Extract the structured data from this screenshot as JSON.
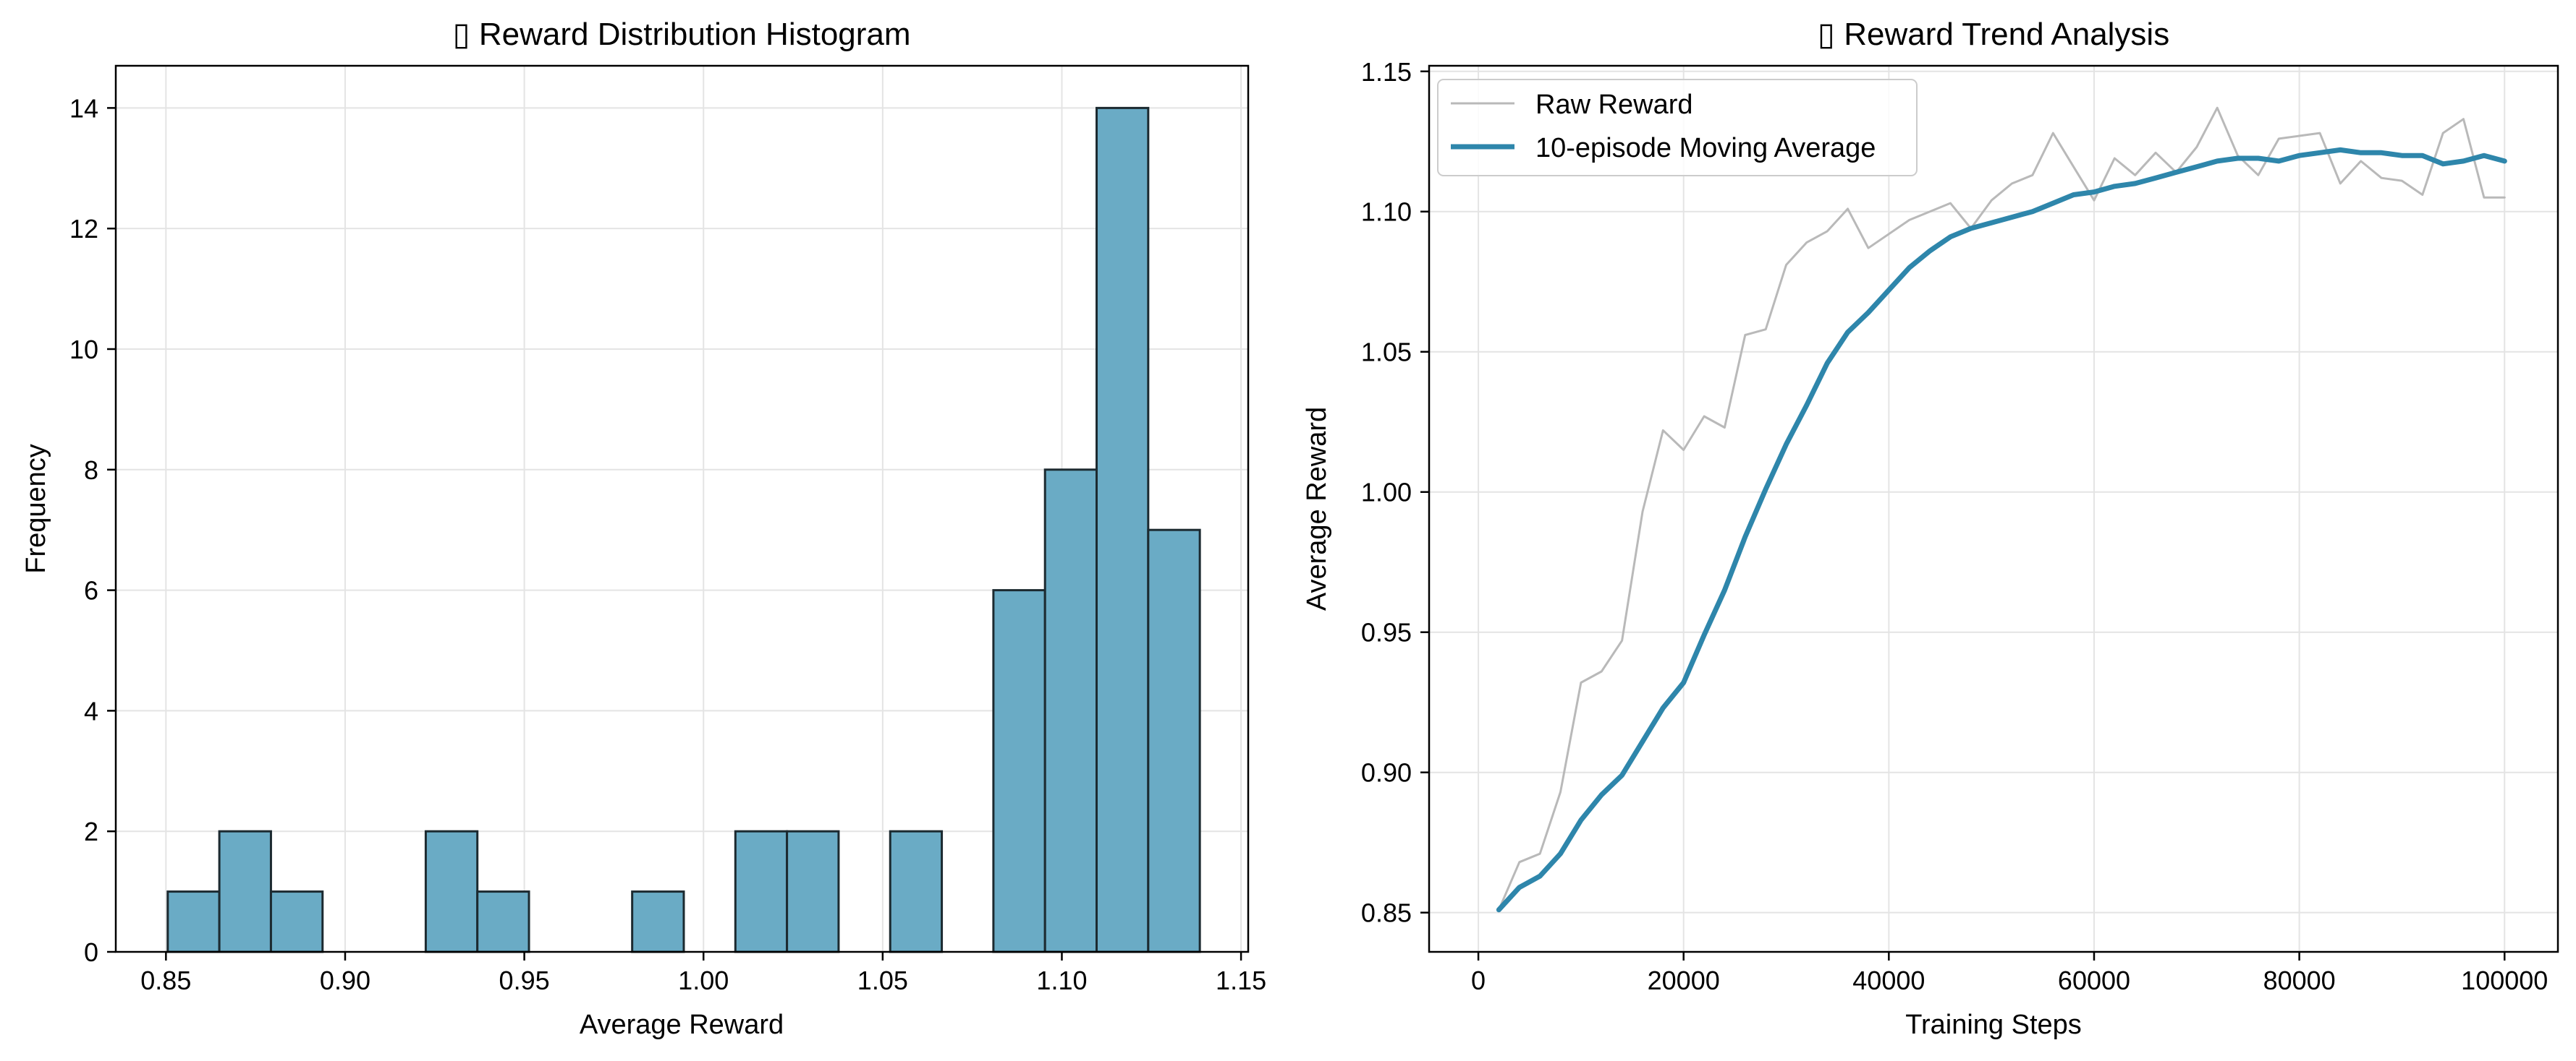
{
  "colors": {
    "bar_fill": "#6aabc5",
    "bar_edge": "#1c2a30",
    "moving_average": "#2e86ab",
    "raw": "#b9b9b9",
    "grid": "#e4e4e4"
  },
  "chart_data": [
    {
      "type": "bar",
      "title": "▯ Reward Distribution Histogram",
      "xlabel": "Average Reward",
      "ylabel": "Frequency",
      "xlim": [
        0.836,
        1.152
      ],
      "ylim": [
        0,
        14.7
      ],
      "xticks": [
        0.85,
        0.9,
        0.95,
        1.0,
        1.05,
        1.1,
        1.15
      ],
      "xtick_labels": [
        "0.85",
        "0.90",
        "0.95",
        "1.00",
        "1.05",
        "1.10",
        "1.15"
      ],
      "yticks": [
        0,
        2,
        4,
        6,
        8,
        10,
        12,
        14
      ],
      "ytick_labels": [
        "0",
        "2",
        "4",
        "6",
        "8",
        "10",
        "12",
        "14"
      ],
      "grid": true,
      "bin_edges": [
        0.8505,
        0.8649,
        0.8793,
        0.8937,
        0.9081,
        0.9225,
        0.9369,
        0.9513,
        0.9657,
        0.9801,
        0.9945,
        1.0089,
        1.0233,
        1.0377,
        1.0521,
        1.0665,
        1.0809,
        1.0953,
        1.1097,
        1.1241,
        1.1385
      ],
      "values": [
        1,
        2,
        1,
        0,
        0,
        2,
        1,
        0,
        0,
        1,
        0,
        2,
        2,
        0,
        2,
        0,
        6,
        8,
        14,
        7
      ]
    },
    {
      "type": "line",
      "title": "▯ Reward Trend Analysis",
      "xlabel": "Training Steps",
      "ylabel": "Average Reward",
      "xlim": [
        -4800,
        105200
      ],
      "ylim": [
        0.836,
        1.152
      ],
      "xticks": [
        0,
        20000,
        40000,
        60000,
        80000,
        100000
      ],
      "xtick_labels": [
        "0",
        "20000",
        "40000",
        "60000",
        "80000",
        "100000"
      ],
      "yticks": [
        0.85,
        0.9,
        0.95,
        1.0,
        1.05,
        1.1,
        1.15
      ],
      "ytick_labels": [
        "0.85",
        "0.90",
        "0.95",
        "1.00",
        "1.05",
        "1.10",
        "1.15"
      ],
      "grid": true,
      "legend_position": "top-left",
      "x": [
        2000,
        4000,
        6000,
        8000,
        10000,
        12000,
        14000,
        16000,
        18000,
        20000,
        22000,
        24000,
        26000,
        28000,
        30000,
        32000,
        34000,
        36000,
        38000,
        40000,
        42000,
        44000,
        46000,
        48000,
        50000,
        52000,
        54000,
        56000,
        58000,
        60000,
        62000,
        64000,
        66000,
        68000,
        70000,
        72000,
        74000,
        76000,
        78000,
        80000,
        82000,
        84000,
        86000,
        88000,
        90000,
        92000,
        94000,
        96000,
        98000,
        100000
      ],
      "series": [
        {
          "name": "Raw Reward",
          "values": [
            0.851,
            0.868,
            0.871,
            0.893,
            0.932,
            0.936,
            0.947,
            0.993,
            1.022,
            1.015,
            1.027,
            1.023,
            1.056,
            1.058,
            1.081,
            1.089,
            1.093,
            1.101,
            1.087,
            1.092,
            1.097,
            1.1,
            1.103,
            1.094,
            1.104,
            1.11,
            1.113,
            1.128,
            1.116,
            1.104,
            1.119,
            1.113,
            1.121,
            1.114,
            1.123,
            1.137,
            1.12,
            1.113,
            1.126,
            1.127,
            1.128,
            1.11,
            1.118,
            1.112,
            1.111,
            1.106,
            1.128,
            1.133,
            1.105,
            1.105
          ]
        },
        {
          "name": "10-episode Moving Average",
          "values": [
            0.851,
            0.859,
            0.863,
            0.871,
            0.883,
            0.892,
            0.899,
            0.911,
            0.923,
            0.932,
            0.949,
            0.965,
            0.984,
            1.001,
            1.017,
            1.031,
            1.046,
            1.057,
            1.064,
            1.072,
            1.08,
            1.086,
            1.091,
            1.094,
            1.096,
            1.098,
            1.1,
            1.103,
            1.106,
            1.107,
            1.109,
            1.11,
            1.112,
            1.114,
            1.116,
            1.118,
            1.119,
            1.119,
            1.118,
            1.12,
            1.121,
            1.122,
            1.121,
            1.121,
            1.12,
            1.12,
            1.117,
            1.118,
            1.12,
            1.118
          ]
        }
      ]
    }
  ]
}
